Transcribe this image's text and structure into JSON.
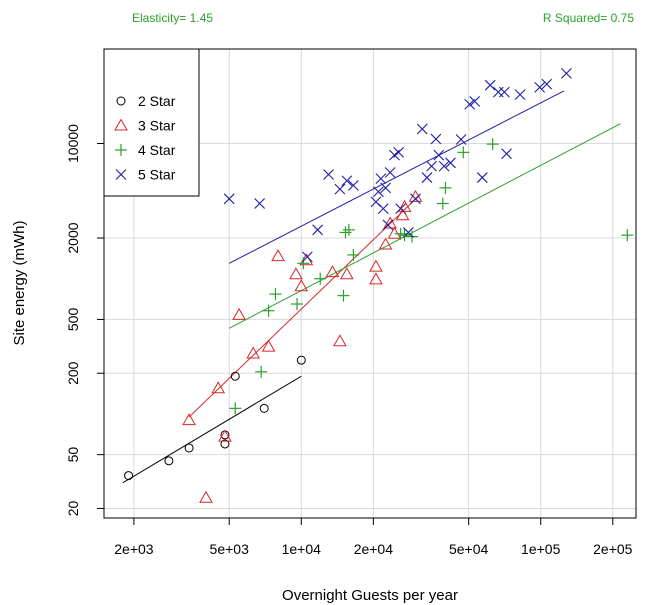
{
  "header": {
    "elasticity_label": "Elasticity=  1.45",
    "r_squared_label": "R Squared=  0.75",
    "color": "#2ca02c"
  },
  "chart_data": {
    "type": "scatter",
    "title": "",
    "xlabel": "Overnight Guests per year",
    "ylabel": "Site energy (mWh)",
    "x_scale": "log",
    "y_scale": "log",
    "xlim": [
      1500,
      250000
    ],
    "ylim": [
      17,
      50000
    ],
    "x_ticks": [
      {
        "value": 2000,
        "label": "2e+03"
      },
      {
        "value": 5000,
        "label": "5e+03"
      },
      {
        "value": 10000,
        "label": "1e+04"
      },
      {
        "value": 20000,
        "label": "2e+04"
      },
      {
        "value": 50000,
        "label": "5e+04"
      },
      {
        "value": 100000,
        "label": "1e+05"
      },
      {
        "value": 200000,
        "label": "2e+05"
      }
    ],
    "y_ticks": [
      {
        "value": 20,
        "label": "20"
      },
      {
        "value": 50,
        "label": "50"
      },
      {
        "value": 200,
        "label": "200"
      },
      {
        "value": 500,
        "label": "500"
      },
      {
        "value": 2000,
        "label": "2000"
      },
      {
        "value": 10000,
        "label": "10000"
      }
    ],
    "grid": true,
    "legend_position": "top-left",
    "series": [
      {
        "name": "2 Star",
        "marker": "circle",
        "color": "#000000",
        "points": [
          [
            1900,
            35
          ],
          [
            2800,
            45
          ],
          [
            3400,
            56
          ],
          [
            4800,
            70
          ],
          [
            4800,
            60
          ],
          [
            5300,
            190
          ],
          [
            7000,
            110
          ],
          [
            10000,
            250
          ]
        ],
        "fit": [
          [
            1800,
            31
          ],
          [
            10000,
            190
          ]
        ]
      },
      {
        "name": "3 Star",
        "marker": "triangle",
        "color": "#d62728",
        "points": [
          [
            3400,
            90
          ],
          [
            4000,
            24
          ],
          [
            4500,
            155
          ],
          [
            4800,
            68
          ],
          [
            5500,
            540
          ],
          [
            6300,
            280
          ],
          [
            7300,
            315
          ],
          [
            8000,
            1470
          ],
          [
            9500,
            1080
          ],
          [
            10000,
            880
          ],
          [
            10500,
            1370
          ],
          [
            13500,
            1120
          ],
          [
            14500,
            345
          ],
          [
            15500,
            1080
          ],
          [
            20500,
            990
          ],
          [
            20500,
            1230
          ],
          [
            24500,
            2150
          ],
          [
            27000,
            3400
          ],
          [
            30000,
            4030
          ],
          [
            26500,
            2950
          ],
          [
            23500,
            2560
          ],
          [
            22500,
            1790
          ]
        ],
        "fit": [
          [
            3400,
            95
          ],
          [
            31000,
            4100
          ]
        ]
      },
      {
        "name": "4 Star",
        "marker": "plus",
        "color": "#2ca02c",
        "points": [
          [
            5300,
            110
          ],
          [
            6800,
            205
          ],
          [
            7300,
            580
          ],
          [
            7800,
            770
          ],
          [
            9600,
            650
          ],
          [
            10200,
            1300
          ],
          [
            12000,
            1000
          ],
          [
            15000,
            750
          ],
          [
            15300,
            2200
          ],
          [
            15800,
            2300
          ],
          [
            16500,
            1500
          ],
          [
            26000,
            2150
          ],
          [
            27000,
            2100
          ],
          [
            29000,
            2050
          ],
          [
            39000,
            3600
          ],
          [
            40000,
            4700
          ],
          [
            47500,
            8600
          ],
          [
            63000,
            9900
          ],
          [
            230000,
            2100
          ]
        ],
        "fit": [
          [
            5000,
            430
          ],
          [
            215000,
            14000
          ]
        ]
      },
      {
        "name": "5 Star",
        "marker": "x",
        "color": "#1f1fa6",
        "points": [
          [
            5000,
            3900
          ],
          [
            6700,
            3600
          ],
          [
            10600,
            1450
          ],
          [
            11700,
            2300
          ],
          [
            13000,
            5900
          ],
          [
            14500,
            4600
          ],
          [
            15500,
            5300
          ],
          [
            16500,
            4900
          ],
          [
            20500,
            3700
          ],
          [
            21000,
            4400
          ],
          [
            21500,
            5500
          ],
          [
            22000,
            3300
          ],
          [
            22500,
            4700
          ],
          [
            23500,
            6100
          ],
          [
            23000,
            2500
          ],
          [
            24500,
            8200
          ],
          [
            25500,
            8600
          ],
          [
            26000,
            3300
          ],
          [
            28000,
            2200
          ],
          [
            30000,
            3900
          ],
          [
            32000,
            12800
          ],
          [
            33500,
            5600
          ],
          [
            35000,
            6800
          ],
          [
            36500,
            10800
          ],
          [
            37500,
            8200
          ],
          [
            39500,
            6800
          ],
          [
            42000,
            7200
          ],
          [
            46500,
            10700
          ],
          [
            50500,
            19500
          ],
          [
            53000,
            20500
          ],
          [
            57000,
            5600
          ],
          [
            61500,
            27000
          ],
          [
            66500,
            24000
          ],
          [
            70500,
            24000
          ],
          [
            72000,
            8400
          ],
          [
            82000,
            23000
          ],
          [
            99000,
            26000
          ],
          [
            106000,
            27500
          ],
          [
            128000,
            33000
          ]
        ],
        "fit": [
          [
            5000,
            1300
          ],
          [
            125000,
            24500
          ]
        ]
      }
    ]
  }
}
